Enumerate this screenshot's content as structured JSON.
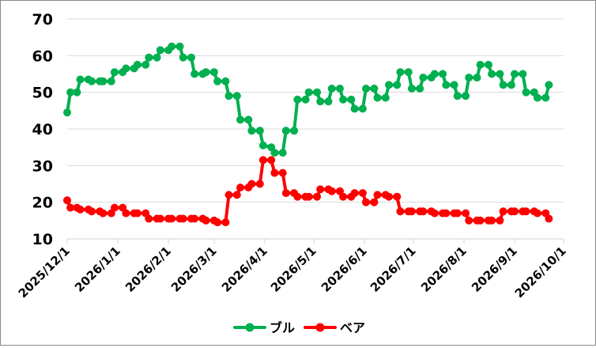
{
  "chart_data": {
    "type": "line",
    "title": "",
    "xlabel": "",
    "ylabel": "",
    "ylim": [
      10,
      70
    ],
    "yticks": [
      "10",
      "20",
      "30",
      "40",
      "50",
      "60",
      "70"
    ],
    "xlim": [
      "2025-12-01",
      "2026-10-01"
    ],
    "xticks": [
      "2025/12/1",
      "2026/1/1",
      "2026/2/1",
      "2026/3/1",
      "2026/4/1",
      "2026/5/1",
      "2026/6/1",
      "2026/7/1",
      "2026/8/1",
      "2026/9/1",
      "2026/10/1"
    ],
    "grid": "horizontal",
    "legend": "bottom",
    "x": [
      "2025-12-01",
      "2025-12-03",
      "2025-12-07",
      "2025-12-09",
      "2025-12-14",
      "2025-12-16",
      "2025-12-21",
      "2025-12-23",
      "2025-12-28",
      "2025-12-30",
      "2026-01-04",
      "2026-01-06",
      "2026-01-11",
      "2026-01-13",
      "2026-01-18",
      "2026-01-20",
      "2026-01-25",
      "2026-01-27",
      "2026-02-01",
      "2026-02-03",
      "2026-02-08",
      "2026-02-10",
      "2026-02-15",
      "2026-02-17",
      "2026-02-22",
      "2026-02-24",
      "2026-03-01",
      "2026-03-03",
      "2026-03-08",
      "2026-03-10",
      "2026-03-15",
      "2026-03-17",
      "2026-03-22",
      "2026-03-24",
      "2026-03-29",
      "2026-03-31",
      "2026-04-05",
      "2026-04-07",
      "2026-04-12",
      "2026-04-14",
      "2026-04-19",
      "2026-04-21",
      "2026-04-26",
      "2026-04-28",
      "2026-05-03",
      "2026-05-05",
      "2026-05-10",
      "2026-05-12",
      "2026-05-17",
      "2026-05-19",
      "2026-05-24",
      "2026-05-26",
      "2026-05-31",
      "2026-06-02",
      "2026-06-07",
      "2026-06-09",
      "2026-06-14",
      "2026-06-16",
      "2026-06-21",
      "2026-06-23",
      "2026-06-28",
      "2026-06-30",
      "2026-07-05",
      "2026-07-07",
      "2026-07-12",
      "2026-07-14",
      "2026-07-19",
      "2026-07-21",
      "2026-07-26",
      "2026-07-28",
      "2026-08-02",
      "2026-08-04",
      "2026-08-09",
      "2026-08-11",
      "2026-08-16",
      "2026-08-18",
      "2026-08-23",
      "2026-08-25",
      "2026-08-30",
      "2026-09-01",
      "2026-09-06",
      "2026-09-08",
      "2026-09-13",
      "2026-09-15",
      "2026-09-20",
      "2026-09-22"
    ],
    "series": [
      {
        "name": "ブル",
        "color": "#00b050",
        "values": [
          44.5,
          50,
          50,
          53.5,
          53.5,
          53,
          53,
          53,
          53,
          55.5,
          55.5,
          56.5,
          56.5,
          57.5,
          57.5,
          59.5,
          59.5,
          61.5,
          61.5,
          62.5,
          62.5,
          59.5,
          59.5,
          55,
          55,
          55.5,
          55.5,
          53,
          53,
          49,
          49,
          42.5,
          42.5,
          39.5,
          39.5,
          35.5,
          35,
          33.5,
          33.5,
          39.5,
          39.5,
          48,
          48,
          50,
          50,
          47.5,
          47.5,
          51,
          51,
          48,
          48,
          45.5,
          45.5,
          51,
          51,
          48.5,
          48.5,
          52,
          52,
          55.5,
          55.5,
          51,
          51,
          54,
          54,
          55,
          55,
          52,
          52,
          49,
          49,
          54,
          54,
          57.5,
          57.5,
          55,
          55,
          52,
          52,
          55,
          55,
          50,
          50,
          48.5,
          48.5,
          52
        ]
      },
      {
        "name": "ベア",
        "color": "#ff0000",
        "values": [
          20.5,
          18.5,
          18.5,
          18,
          18,
          17.5,
          17.5,
          17,
          17,
          18.5,
          18.5,
          17,
          17,
          17,
          17,
          15.5,
          15.5,
          15.5,
          15.5,
          15.5,
          15.5,
          15.5,
          15.5,
          15.5,
          15.5,
          15,
          15,
          14.5,
          14.5,
          22,
          22,
          24,
          24,
          25,
          25,
          31.5,
          31.5,
          28,
          28,
          22.5,
          22.5,
          21.5,
          21.5,
          21.5,
          21.5,
          23.5,
          23.5,
          23,
          23,
          21.5,
          21.5,
          22.5,
          22.5,
          20,
          20,
          22,
          22,
          21.5,
          21.5,
          17.5,
          17.5,
          17.5,
          17.5,
          17.5,
          17.5,
          17,
          17,
          17,
          17,
          17,
          17,
          15,
          15,
          15,
          15,
          15,
          15,
          17.5,
          17.5,
          17.5,
          17.5,
          17.5,
          17.5,
          17,
          17,
          15.5
        ]
      }
    ]
  }
}
